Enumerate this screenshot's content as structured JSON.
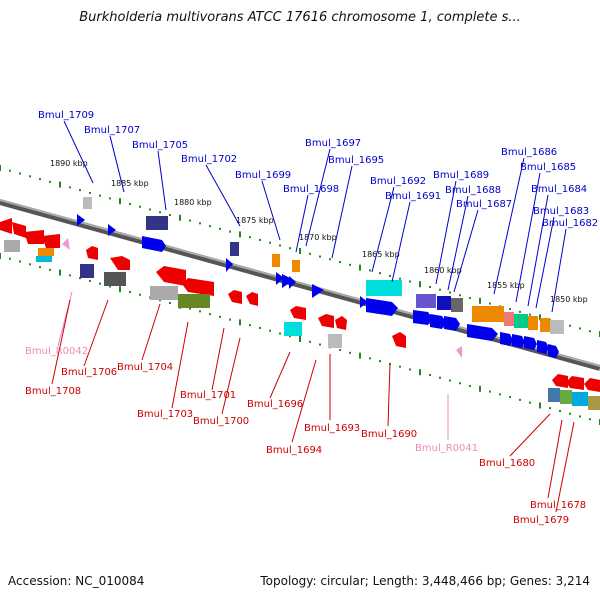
{
  "title": "Burkholderia multivorans ATCC 17616 chromosome 1, complete s...",
  "footer": {
    "accession": "Accession: NC_010084",
    "summary": "Topology: circular; Length: 3,448,466 bp; Genes: 3,214"
  },
  "colors": {
    "forward_label": "#0000cc",
    "reverse_label": "#cc0000",
    "rna_label": "#ee88bb",
    "backbone": "#777777",
    "ruler_dot": "#228822",
    "ruler_tick": "#228822"
  },
  "ruler_ticks": [
    "1890 kbp",
    "1885 kbp",
    "1880 kbp",
    "1875 kbp",
    "1870 kbp",
    "1865 kbp",
    "1860 kbp",
    "1855 kbp",
    "1850 kbp"
  ],
  "forward_gene_labels": [
    "Bmul_1709",
    "Bmul_1707",
    "Bmul_1705",
    "Bmul_1702",
    "Bmul_1699",
    "Bmul_1698",
    "Bmul_1697",
    "Bmul_1695",
    "Bmul_1692",
    "Bmul_1691",
    "Bmul_1689",
    "Bmul_1688",
    "Bmul_1687",
    "Bmul_1686",
    "Bmul_1685",
    "Bmul_1684",
    "Bmul_1683",
    "Bmul_1682"
  ],
  "reverse_gene_labels": [
    "Bmul_R0042",
    "Bmul_1708",
    "Bmul_1706",
    "Bmul_1704",
    "Bmul_1703",
    "Bmul_1701",
    "Bmul_1700",
    "Bmul_1696",
    "Bmul_1694",
    "Bmul_1693",
    "Bmul_1690",
    "Bmul_R0041",
    "Bmul_1680",
    "Bmul_1678",
    "Bmul_1679"
  ]
}
